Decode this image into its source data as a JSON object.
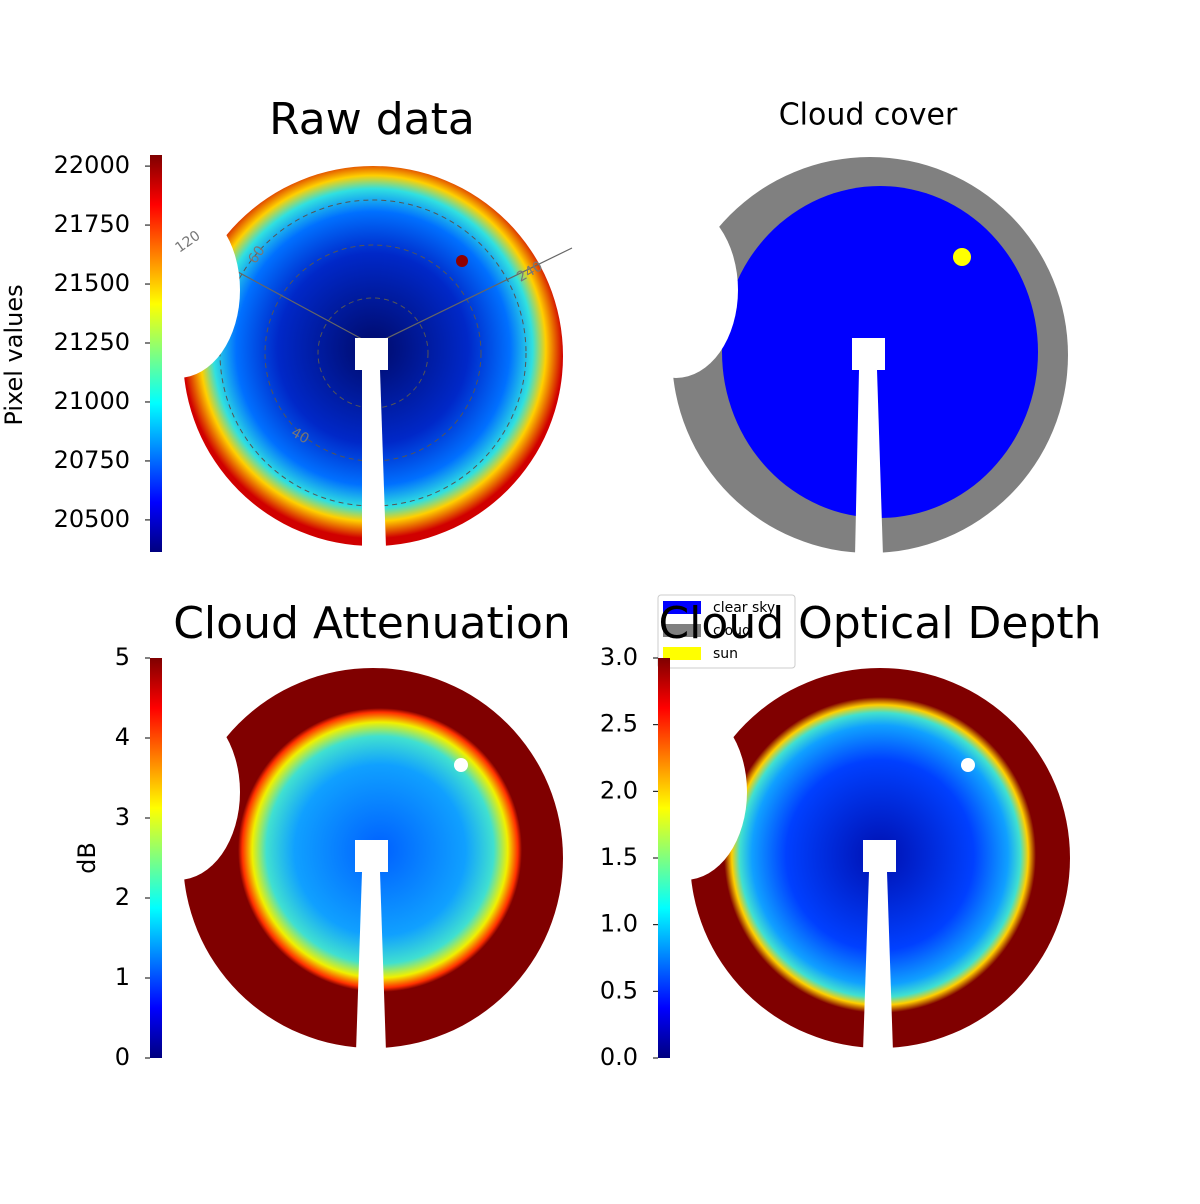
{
  "chart_data": [
    {
      "type": "image",
      "title": "Raw data",
      "colorbar_label": "Pixel values",
      "colormap": "jet",
      "ylim": [
        20364,
        22047
      ],
      "yticks": [
        20500,
        20750,
        21000,
        21250,
        21500,
        21750,
        22000
      ],
      "annotations": [
        "120",
        "60",
        "240",
        "40"
      ]
    },
    {
      "type": "image",
      "title": "Cloud cover",
      "legend_corner": "lower left",
      "legend": [
        {
          "name": "clear sky",
          "color": "#0000ff"
        },
        {
          "name": "cloud",
          "color": "#808080"
        },
        {
          "name": "sun",
          "color": "#ffff00"
        }
      ]
    },
    {
      "type": "image",
      "title": "Cloud Attenuation",
      "colorbar_label": "dB",
      "colormap": "jet",
      "ylim": [
        0,
        5
      ],
      "yticks": [
        0,
        1,
        2,
        3,
        4,
        5
      ]
    },
    {
      "type": "image",
      "title": "Cloud Optical Depth",
      "colormap": "jet",
      "ylim": [
        0,
        3
      ],
      "yticks": [
        {
          "value": 0,
          "label": "0.0"
        },
        0.5,
        {
          "value": 1,
          "label": "1.0"
        },
        1.5,
        {
          "value": 2,
          "label": "2.0"
        },
        2.5,
        {
          "value": 3,
          "label": "3.0"
        }
      ]
    }
  ]
}
